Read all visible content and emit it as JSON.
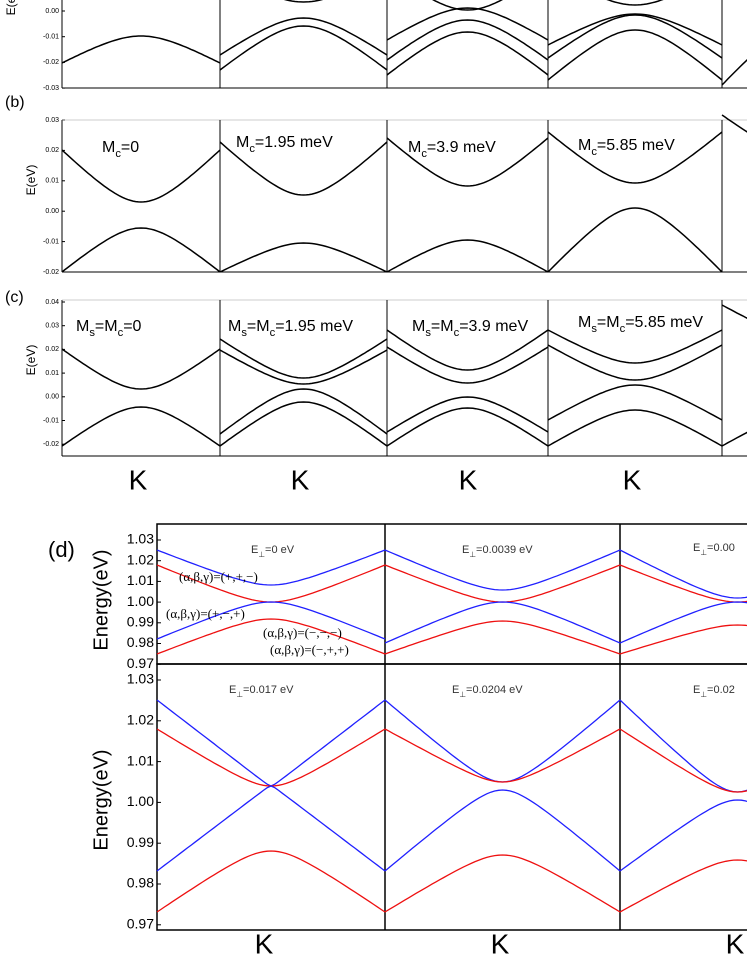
{
  "panel_a": {
    "axis_label": "E(e",
    "yticks": [
      "0.00",
      "-0.01",
      "-0.02",
      "-0.03"
    ]
  },
  "panel_b": {
    "label": "(b)",
    "axis_label": "E(eV)",
    "yticks": [
      "0.03",
      "0.02",
      "0.01",
      "0.00",
      "-0.01",
      "-0.02"
    ],
    "annotations": [
      [
        "M",
        "c",
        "=0"
      ],
      [
        "M",
        "c",
        "=1.95 meV"
      ],
      [
        "M",
        "c",
        "=3.9 meV"
      ],
      [
        "M",
        "c",
        "=5.85 meV"
      ]
    ]
  },
  "panel_c": {
    "label": "(c)",
    "axis_label": "E(eV)",
    "yticks": [
      "0.04",
      "0.03",
      "0.02",
      "0.01",
      "0.00",
      "-0.01",
      "-0.02"
    ],
    "annotations": [
      [
        "M",
        "s",
        "=M",
        "c",
        "=0"
      ],
      [
        "M",
        "s",
        "=M",
        "c",
        "=1.95 meV"
      ],
      [
        "M",
        "s",
        "=M",
        "c",
        "=3.9 meV"
      ],
      [
        "M",
        "s",
        "=M",
        "c",
        "=5.85 meV"
      ]
    ],
    "k_labels": [
      "K",
      "K",
      "K",
      "K"
    ]
  },
  "panel_d": {
    "label": "(d)",
    "axis_label": "Energy(eV)",
    "yticks": [
      "1.03",
      "1.02",
      "1.01",
      "1.00",
      "0.99",
      "0.98",
      "0.97"
    ],
    "top_annotations": [
      [
        "E",
        "⊥",
        "=0 eV"
      ],
      [
        "E",
        "⊥",
        "=0.0039 eV"
      ],
      [
        "E",
        "⊥",
        "=0.00"
      ]
    ],
    "bottom_annotations": [
      [
        "E",
        "⊥",
        "=0.017 eV"
      ],
      [
        "E",
        "⊥",
        "=0.0204 eV"
      ],
      [
        "E",
        "⊥",
        "=0.02"
      ]
    ],
    "band_labels": [
      "(α,β,γ)=(+,+,−)",
      "(α,β,γ)=(+,−,+)",
      "(α,β,γ)=(−,+,+)",
      "(α,β,γ)=(−,−,−)"
    ],
    "k_labels": [
      "K",
      "K",
      "K"
    ]
  }
}
